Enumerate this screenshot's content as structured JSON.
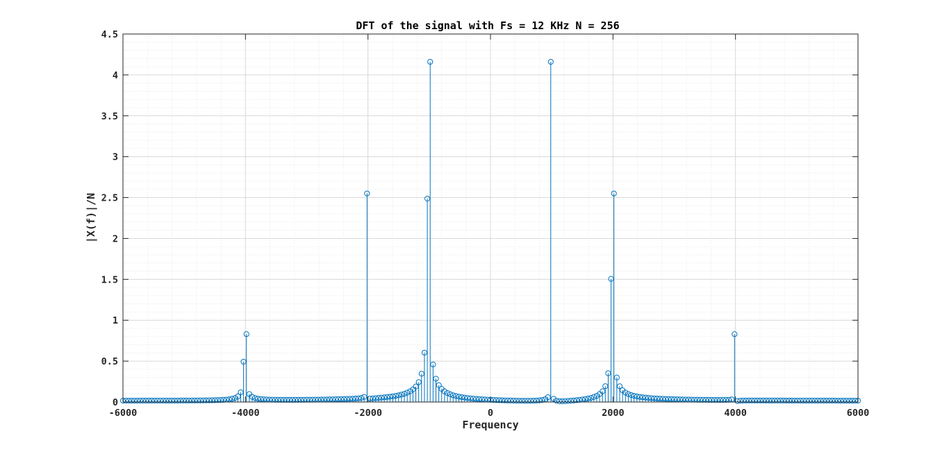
{
  "chart_data": {
    "type": "stem",
    "title": "DFT of the signal with Fs = 12 KHz N = 256",
    "xlabel": "Frequency",
    "ylabel": "|X(f)|/N",
    "xlim": [
      -6000,
      6000
    ],
    "ylim": [
      0,
      4.5
    ],
    "xticks": [
      -6000,
      -4000,
      -2000,
      0,
      2000,
      4000,
      6000
    ],
    "xtick_labels": [
      "-6000",
      "-4000",
      "-2000",
      "0",
      "2000",
      "4000",
      "6000"
    ],
    "yticks": [
      0,
      0.5,
      1,
      1.5,
      2,
      2.5,
      3,
      3.5,
      4,
      4.5
    ],
    "ytick_labels": [
      "0",
      "0.5",
      "1",
      "1.5",
      "2",
      "2.5",
      "3",
      "3.5",
      "4",
      "4.5"
    ],
    "grid": true,
    "minor_grid": true,
    "colors": {
      "series": "#0072BD",
      "grid": "#d9d9d9",
      "axes": "#262626"
    },
    "series": [
      {
        "x_start": -6000,
        "x_step": 46.875,
        "count": 257,
        "peaks": [
          {
            "x": -4000,
            "y": 0.83
          },
          {
            "x": -2000,
            "y": 2.55
          },
          {
            "x": -1000,
            "y": 4.16
          },
          {
            "x": 1000,
            "y": 4.16
          },
          {
            "x": 2000,
            "y": 2.55
          },
          {
            "x": 4000,
            "y": 0.83
          }
        ]
      }
    ]
  }
}
